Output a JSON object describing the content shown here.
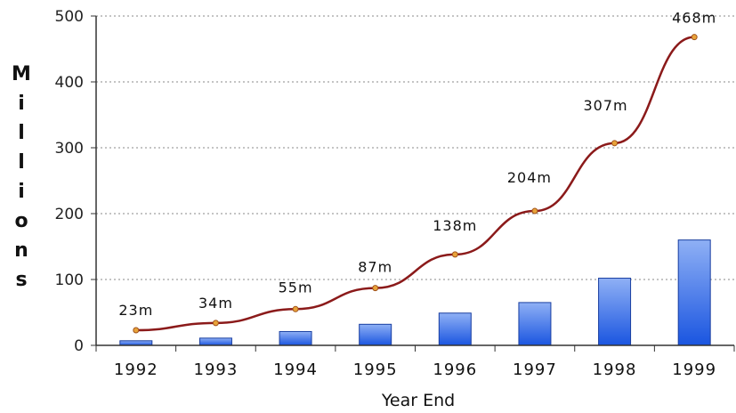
{
  "chart_data": {
    "type": "bar",
    "categories": [
      "1992",
      "1993",
      "1994",
      "1995",
      "1996",
      "1997",
      "1998",
      "1999"
    ],
    "series": [
      {
        "type": "bar",
        "values": [
          7,
          11,
          21,
          32,
          49,
          65,
          102,
          160
        ]
      },
      {
        "type": "line",
        "values": [
          23,
          34,
          55,
          87,
          138,
          204,
          307,
          468
        ],
        "labels": [
          "23m",
          "34m",
          "55m",
          "87m",
          "138m",
          "204m",
          "307m",
          "468m"
        ]
      }
    ],
    "xlabel": "Year End",
    "ylabel": "Millions",
    "ylim": [
      0,
      500
    ],
    "yticks": [
      "0",
      "100",
      "200",
      "300",
      "400",
      "500"
    ],
    "grid": true,
    "colors": {
      "bar_top": "#8fb0f5",
      "bar_bottom": "#1a55e0",
      "line": "#8b1a1a",
      "marker": "#e8a33a",
      "grid": "#888888"
    }
  }
}
